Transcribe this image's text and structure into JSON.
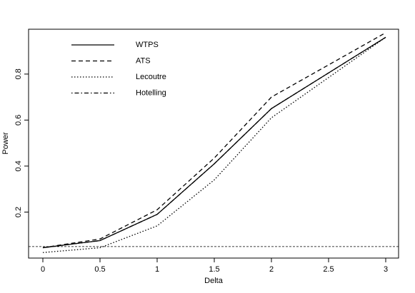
{
  "chart_data": {
    "type": "line",
    "x_label": "Delta",
    "y_label": "Power",
    "x": [
      0,
      0.5,
      1,
      1.5,
      2,
      3
    ],
    "series": [
      {
        "name": "WTPS",
        "color": "#000000",
        "linestyle": "solid",
        "values": [
          0.045,
          0.076,
          0.19,
          0.41,
          0.65,
          0.96
        ]
      },
      {
        "name": "ATS",
        "color": "#000000",
        "linestyle": "dashed",
        "values": [
          0.045,
          0.083,
          0.21,
          0.435,
          0.7,
          0.98
        ]
      },
      {
        "name": "Lecoutre",
        "color": "#000000",
        "linestyle": "dotted",
        "values": [
          0.024,
          0.045,
          0.14,
          0.34,
          0.61,
          0.96
        ]
      },
      {
        "name": "Hotelling",
        "color": "#000000",
        "linestyle": "dotdash",
        "values": [
          0.045,
          0.076,
          0.19,
          0.41,
          0.65,
          0.96
        ]
      }
    ],
    "hline": 0.05,
    "xlim": [
      -0.125,
      3.1125
    ],
    "ylim": [
      0,
      0.995
    ],
    "xticks": [
      0,
      0.5,
      1,
      1.5,
      2,
      2.5,
      3
    ],
    "yticks": [
      0.2,
      0.4,
      0.6,
      0.8
    ],
    "legend": "top-left"
  }
}
